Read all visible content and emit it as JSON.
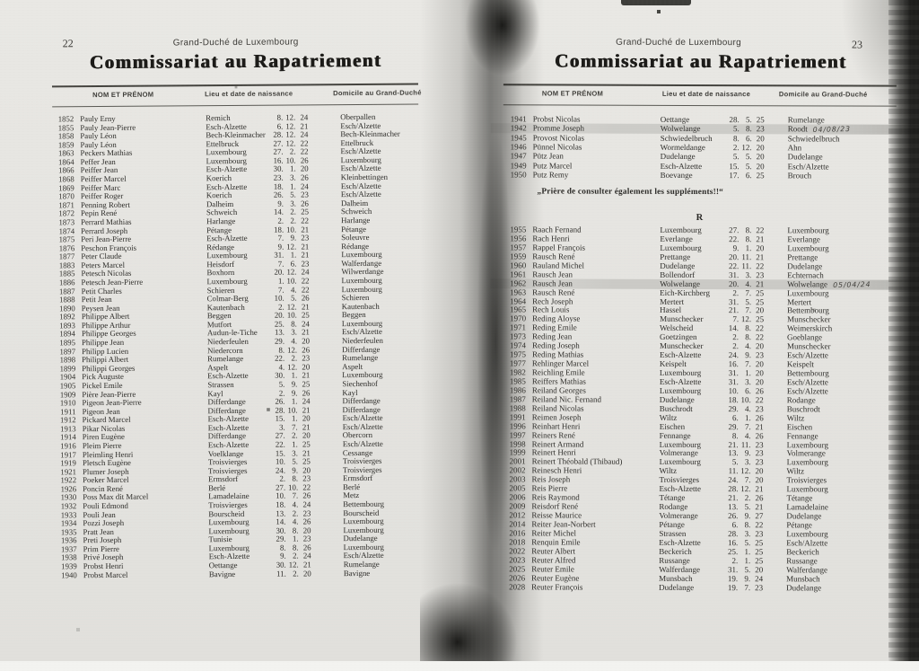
{
  "scan": {
    "paper_color": "#e6e5e1",
    "ink_color": "#2d2c29",
    "highlight_color": "#b9b9b6"
  },
  "left_page": {
    "page_number": "22",
    "running_head": "Grand-Duché de Luxembourg",
    "title": "Commissariat au Rapatriement",
    "columns": {
      "name": "NOM ET PRÉNOM",
      "birth": "Lieu et date de naissance",
      "domicile": "Domicile au Grand-Duché"
    },
    "rows": [
      [
        "1852",
        "Pauly Erny",
        "Remich",
        "8",
        "12",
        "24",
        "Oberpallen"
      ],
      [
        "1855",
        "Pauly Jean-Pierre",
        "Esch-Alzette",
        "6",
        "12",
        "21",
        "Esch/Alzette"
      ],
      [
        "1858",
        "Pauly Léon",
        "Bech-Kleinmacher",
        "28",
        "12",
        "24",
        "Bech-Kleinmacher"
      ],
      [
        "1859",
        "Pauly Léon",
        "Ettelbruck",
        "27",
        "12",
        "22",
        "Ettelbruck"
      ],
      [
        "1863",
        "Peckers Mathias",
        "Luxembourg",
        "27",
        "2",
        "22",
        "Esch/Alzette"
      ],
      [
        "1864",
        "Peffer Jean",
        "Luxembourg",
        "16",
        "10",
        "26",
        "Luxembourg"
      ],
      [
        "1866",
        "Peiffer Jean",
        "Esch-Alzette",
        "30",
        "1",
        "20",
        "Esch/Alzette"
      ],
      [
        "1868",
        "Peiffer Marcel",
        "Koerich",
        "23",
        "3",
        "26",
        "Kleinbettingen"
      ],
      [
        "1869",
        "Peiffer Marc",
        "Esch-Alzette",
        "18",
        "1",
        "24",
        "Esch/Alzette"
      ],
      [
        "1870",
        "Peiffer Roger",
        "Koerich",
        "26",
        "5",
        "23",
        "Esch/Alzette"
      ],
      [
        "1871",
        "Penning Robert",
        "Dalheim",
        "9",
        "3",
        "26",
        "Dalheim"
      ],
      [
        "1872",
        "Pepin René",
        "Schweich",
        "14",
        "2",
        "25",
        "Schweich"
      ],
      [
        "1873",
        "Perrard Mathias",
        "Harlange",
        "2",
        "2",
        "22",
        "Harlange"
      ],
      [
        "1874",
        "Perrard Joseph",
        "Pétange",
        "18",
        "10",
        "21",
        "Pétange"
      ],
      [
        "1875",
        "Peri Jean-Pierre",
        "Esch-Alzette",
        "7",
        "9",
        "23",
        "Soleuvre"
      ],
      [
        "1876",
        "Peschon François",
        "Rédange",
        "9",
        "12",
        "21",
        "Rédange"
      ],
      [
        "1877",
        "Peter Claude",
        "Luxembourg",
        "31",
        "1",
        "21",
        "Luxembourg"
      ],
      [
        "1883",
        "Peters Marcel",
        "Heisdorf",
        "7",
        "6",
        "23",
        "Walferdange"
      ],
      [
        "1885",
        "Petesch Nicolas",
        "Boxhorn",
        "20",
        "12",
        "24",
        "Wilwerdange"
      ],
      [
        "1886",
        "Petesch Jean-Pierre",
        "Luxembourg",
        "1",
        "10",
        "22",
        "Luxembourg"
      ],
      [
        "1887",
        "Petit Charles",
        "Schieren",
        "7",
        "4",
        "22",
        "Luxembourg"
      ],
      [
        "1888",
        "Petit Jean",
        "Colmar-Berg",
        "10",
        "5",
        "26",
        "Schieren"
      ],
      [
        "1890",
        "Peysen Jean",
        "Kautenbach",
        "2",
        "12",
        "21",
        "Kautenbach"
      ],
      [
        "1892",
        "Philippe Albert",
        "Beggen",
        "20",
        "10",
        "25",
        "Beggen"
      ],
      [
        "1893",
        "Philippe Arthur",
        "Mutfort",
        "25",
        "8",
        "24",
        "Luxembourg"
      ],
      [
        "1894",
        "Philippe Georges",
        "Audun-le-Tiche",
        "13",
        "3",
        "21",
        "Esch/Alzette"
      ],
      [
        "1895",
        "Philippe Jean",
        "Niederfeulen",
        "29",
        "4",
        "20",
        "Niederfeulen"
      ],
      [
        "1897",
        "Philipp Lucien",
        "Niedercorn",
        "8",
        "12",
        "26",
        "Differdange"
      ],
      [
        "1898",
        "Philippi Albert",
        "Rumelange",
        "22",
        "2",
        "23",
        "Rumelange"
      ],
      [
        "1899",
        "Philippi Georges",
        "Aspelt",
        "4",
        "12",
        "20",
        "Aspelt"
      ],
      [
        "1904",
        "Pick Auguste",
        "Esch-Alzette",
        "30",
        "1",
        "21",
        "Luxembourg"
      ],
      [
        "1905",
        "Pickel Emile",
        "Strassen",
        "5",
        "9",
        "25",
        "Siechenhof"
      ],
      [
        "1909",
        "Pière Jean-Pierre",
        "Kayl",
        "2",
        "9",
        "26",
        "Kayl"
      ],
      [
        "1910",
        "Pigeon Jean-Pierre",
        "Differdange",
        "26",
        "1",
        "24",
        "Differdange"
      ],
      [
        "1911",
        "Pigeon Jean",
        "Differdange",
        "28",
        "10",
        "21",
        "Differdange"
      ],
      [
        "1912",
        "Pickard Marcel",
        "Esch-Alzette",
        "15",
        "1",
        "20",
        "Esch/Alzette"
      ],
      [
        "1913",
        "Pikar Nicolas",
        "Esch-Alzette",
        "3",
        "7",
        "21",
        "Esch/Alzette"
      ],
      [
        "1914",
        "Piren Eugène",
        "Differdange",
        "27",
        "2",
        "20",
        "Obercorn"
      ],
      [
        "1916",
        "Pleim Pierre",
        "Esch-Alzette",
        "22",
        "1",
        "25",
        "Esch/Alzette"
      ],
      [
        "1917",
        "Pleimling Henri",
        "Voelklange",
        "15",
        "3",
        "21",
        "Cessange"
      ],
      [
        "1919",
        "Pletsch Eugène",
        "Troisvierges",
        "10",
        "5",
        "25",
        "Troisvierges"
      ],
      [
        "1921",
        "Plumer Joseph",
        "Troisvierges",
        "24",
        "9",
        "20",
        "Troisvierges"
      ],
      [
        "1922",
        "Poeker Marcel",
        "Ermsdorf",
        "2",
        "8",
        "23",
        "Ermsdorf"
      ],
      [
        "1926",
        "Poncin René",
        "Berlé",
        "27",
        "10",
        "22",
        "Berlé"
      ],
      [
        "1930",
        "Poss Max dit Marcel",
        "Lamadelaine",
        "10",
        "7",
        "26",
        "Metz"
      ],
      [
        "1932",
        "Pouli Edmond",
        "Troisvierges",
        "18",
        "4",
        "24",
        "Bettembourg"
      ],
      [
        "1933",
        "Pouli Jean",
        "Bourscheid",
        "13",
        "2",
        "23",
        "Bourscheid"
      ],
      [
        "1934",
        "Pozzi Joseph",
        "Luxembourg",
        "14",
        "4",
        "26",
        "Luxembourg"
      ],
      [
        "1935",
        "Pratt Jean",
        "Luxembourg",
        "30",
        "8",
        "20",
        "Luxembourg"
      ],
      [
        "1936",
        "Preti Joseph",
        "Tunisie",
        "29",
        "1",
        "23",
        "Dudelange"
      ],
      [
        "1937",
        "Prim Pierre",
        "Luxembourg",
        "8",
        "8",
        "26",
        "Luxembourg"
      ],
      [
        "1938",
        "Privé Joseph",
        "Esch-Alzette",
        "9",
        "2",
        "24",
        "Esch/Alzette"
      ],
      [
        "1939",
        "Probst Henri",
        "Oettange",
        "30",
        "12",
        "21",
        "Rumelange"
      ],
      [
        "1940",
        "Probst Marcel",
        "Bavigne",
        "11",
        "2",
        "20",
        "Bavigne"
      ]
    ]
  },
  "right_page": {
    "page_number": "23",
    "running_head": "Grand-Duché de Luxembourg",
    "title": "Commissariat au Rapatriement",
    "columns": {
      "name": "NOM ET PRÉNOM",
      "birth": "Lieu et date de naissance",
      "domicile": "Domicile au Grand-Duché"
    },
    "rows_top": [
      [
        "1941",
        "Probst Nicolas",
        "Oettange",
        "28",
        "5",
        "25",
        "Rumelange"
      ],
      [
        "1942",
        "Promme Joseph",
        "Wolwelange",
        "5",
        "8",
        "23",
        "Roodt",
        {
          "hl": true,
          "annot": "04/08/23"
        }
      ],
      [
        "1945",
        "Provost Nicolas",
        "Schwiedelbruch",
        "8",
        "6",
        "20",
        "Schwiedelbruch"
      ],
      [
        "1946",
        "Pünnel Nicolas",
        "Wormeldange",
        "2",
        "12",
        "20",
        "Ahn"
      ],
      [
        "1947",
        "Pütz Jean",
        "Dudelange",
        "5",
        "5",
        "20",
        "Dudelange"
      ],
      [
        "1949",
        "Putz Marcel",
        "Esch-Alzette",
        "15",
        "5",
        "20",
        "Esch/Alzette"
      ],
      [
        "1950",
        "Putz Remy",
        "Boevange",
        "17",
        "6",
        "25",
        "Brouch"
      ]
    ],
    "notice": "„Prière de consulter également les suppléments!!“",
    "section_letter": "R",
    "rows_r": [
      [
        "1955",
        "Raach Fernand",
        "Luxembourg",
        "27",
        "8",
        "22",
        "Luxembourg"
      ],
      [
        "1956",
        "Rach Henri",
        "Everlange",
        "22",
        "8",
        "21",
        "Everlange"
      ],
      [
        "1957",
        "Rappel François",
        "Luxembourg",
        "9",
        "1",
        "20",
        "Luxembourg"
      ],
      [
        "1959",
        "Rausch René",
        "Prettange",
        "20",
        "11",
        "21",
        "Prettange"
      ],
      [
        "1960",
        "Rauland Michel",
        "Dudelange",
        "22",
        "11",
        "22",
        "Dudelange"
      ],
      [
        "1961",
        "Rausch Jean",
        "Bollendorf",
        "31",
        "3",
        "23",
        "Echternach"
      ],
      [
        "1962",
        "Rausch Jean",
        "Wolwelange",
        "20",
        "4",
        "21",
        "Wolwelange",
        {
          "hl": true,
          "annot": "05/04/24"
        }
      ],
      [
        "1963",
        "Rausch René",
        "Eich-Kirchberg",
        "2",
        "7",
        "25",
        "Luxembourg"
      ],
      [
        "1964",
        "Rech Joseph",
        "Mertert",
        "31",
        "5",
        "25",
        "Mertert"
      ],
      [
        "1965",
        "Rech Louis",
        "Hassel",
        "21",
        "7",
        "20",
        "Bettembourg"
      ],
      [
        "1970",
        "Reding Aloyse",
        "Munschecker",
        "7",
        "12",
        "25",
        "Munschecker"
      ],
      [
        "1971",
        "Reding Emile",
        "Welscheid",
        "14",
        "8",
        "22",
        "Weimerskirch"
      ],
      [
        "1973",
        "Reding Jean",
        "Goetzingen",
        "2",
        "8",
        "22",
        "Goeblange"
      ],
      [
        "1974",
        "Reding Joseph",
        "Munschecker",
        "2",
        "4",
        "20",
        "Munschecker"
      ],
      [
        "1975",
        "Reding Mathias",
        "Esch-Alzette",
        "24",
        "9",
        "23",
        "Esch/Alzette"
      ],
      [
        "1977",
        "Rehlinger Marcel",
        "Keispelt",
        "16",
        "7",
        "20",
        "Keispelt"
      ],
      [
        "1982",
        "Reichling Emile",
        "Luxembourg",
        "31",
        "1",
        "20",
        "Bettembourg"
      ],
      [
        "1985",
        "Reiffers Mathias",
        "Esch-Alzette",
        "31",
        "3",
        "20",
        "Esch/Alzette"
      ],
      [
        "1986",
        "Reiland Georges",
        "Luxembourg",
        "10",
        "6",
        "26",
        "Esch/Alzette"
      ],
      [
        "1987",
        "Reiland Nic. Fernand",
        "Dudelange",
        "18",
        "10",
        "22",
        "Rodange"
      ],
      [
        "1988",
        "Reiland Nicolas",
        "Buschrodt",
        "29",
        "4",
        "23",
        "Buschrodt"
      ],
      [
        "1991",
        "Reimen Joseph",
        "Wiltz",
        "6",
        "1",
        "26",
        "Wiltz"
      ],
      [
        "1996",
        "Reinhart Henri",
        "Eischen",
        "29",
        "7",
        "21",
        "Eischen"
      ],
      [
        "1997",
        "Reiners René",
        "Fennange",
        "8",
        "4",
        "26",
        "Fennange"
      ],
      [
        "1998",
        "Reinert Armand",
        "Luxembourg",
        "21",
        "11",
        "23",
        "Luxembourg"
      ],
      [
        "1999",
        "Reinert Henri",
        "Volmerange",
        "13",
        "9",
        "23",
        "Volmerange"
      ],
      [
        "2001",
        "Reinert Théobald (Thibaud)",
        "Luxembourg",
        "5",
        "3",
        "23",
        "Luxembourg"
      ],
      [
        "2002",
        "Reinesch Henri",
        "Wiltz",
        "11",
        "12",
        "20",
        "Wiltz"
      ],
      [
        "2003",
        "Reis Joseph",
        "Troisvierges",
        "24",
        "7",
        "20",
        "Troisvierges"
      ],
      [
        "2005",
        "Reis Pierre",
        "Esch-Alzette",
        "28",
        "12",
        "21",
        "Luxembourg"
      ],
      [
        "2006",
        "Reis Raymond",
        "Tétange",
        "21",
        "2",
        "26",
        "Tétange"
      ],
      [
        "2009",
        "Reisdorf René",
        "Rodange",
        "13",
        "5",
        "21",
        "Lamadelaine"
      ],
      [
        "2012",
        "Reisse Maurice",
        "Volmerange",
        "26",
        "9",
        "27",
        "Dudelange"
      ],
      [
        "2014",
        "Reiter Jean-Norbert",
        "Pétange",
        "6",
        "8",
        "22",
        "Pétange"
      ],
      [
        "2016",
        "Reiter Michel",
        "Strassen",
        "28",
        "3",
        "23",
        "Luxembourg"
      ],
      [
        "2018",
        "Renquin Emile",
        "Esch-Alzette",
        "16",
        "5",
        "25",
        "Esch/Alzette"
      ],
      [
        "2022",
        "Reuter Albert",
        "Beckerich",
        "25",
        "1",
        "25",
        "Beckerich"
      ],
      [
        "2023",
        "Reuter Alfred",
        "Russange",
        "2",
        "1",
        "25",
        "Russange"
      ],
      [
        "2025",
        "Reuter Emile",
        "Walferdange",
        "31",
        "5",
        "20",
        "Walferdange"
      ],
      [
        "2026",
        "Reuter Eugène",
        "Munsbach",
        "19",
        "9",
        "24",
        "Munsbach"
      ],
      [
        "2028",
        "Reuter François",
        "Dudelange",
        "19",
        "7",
        "23",
        "Dudelange"
      ]
    ]
  }
}
